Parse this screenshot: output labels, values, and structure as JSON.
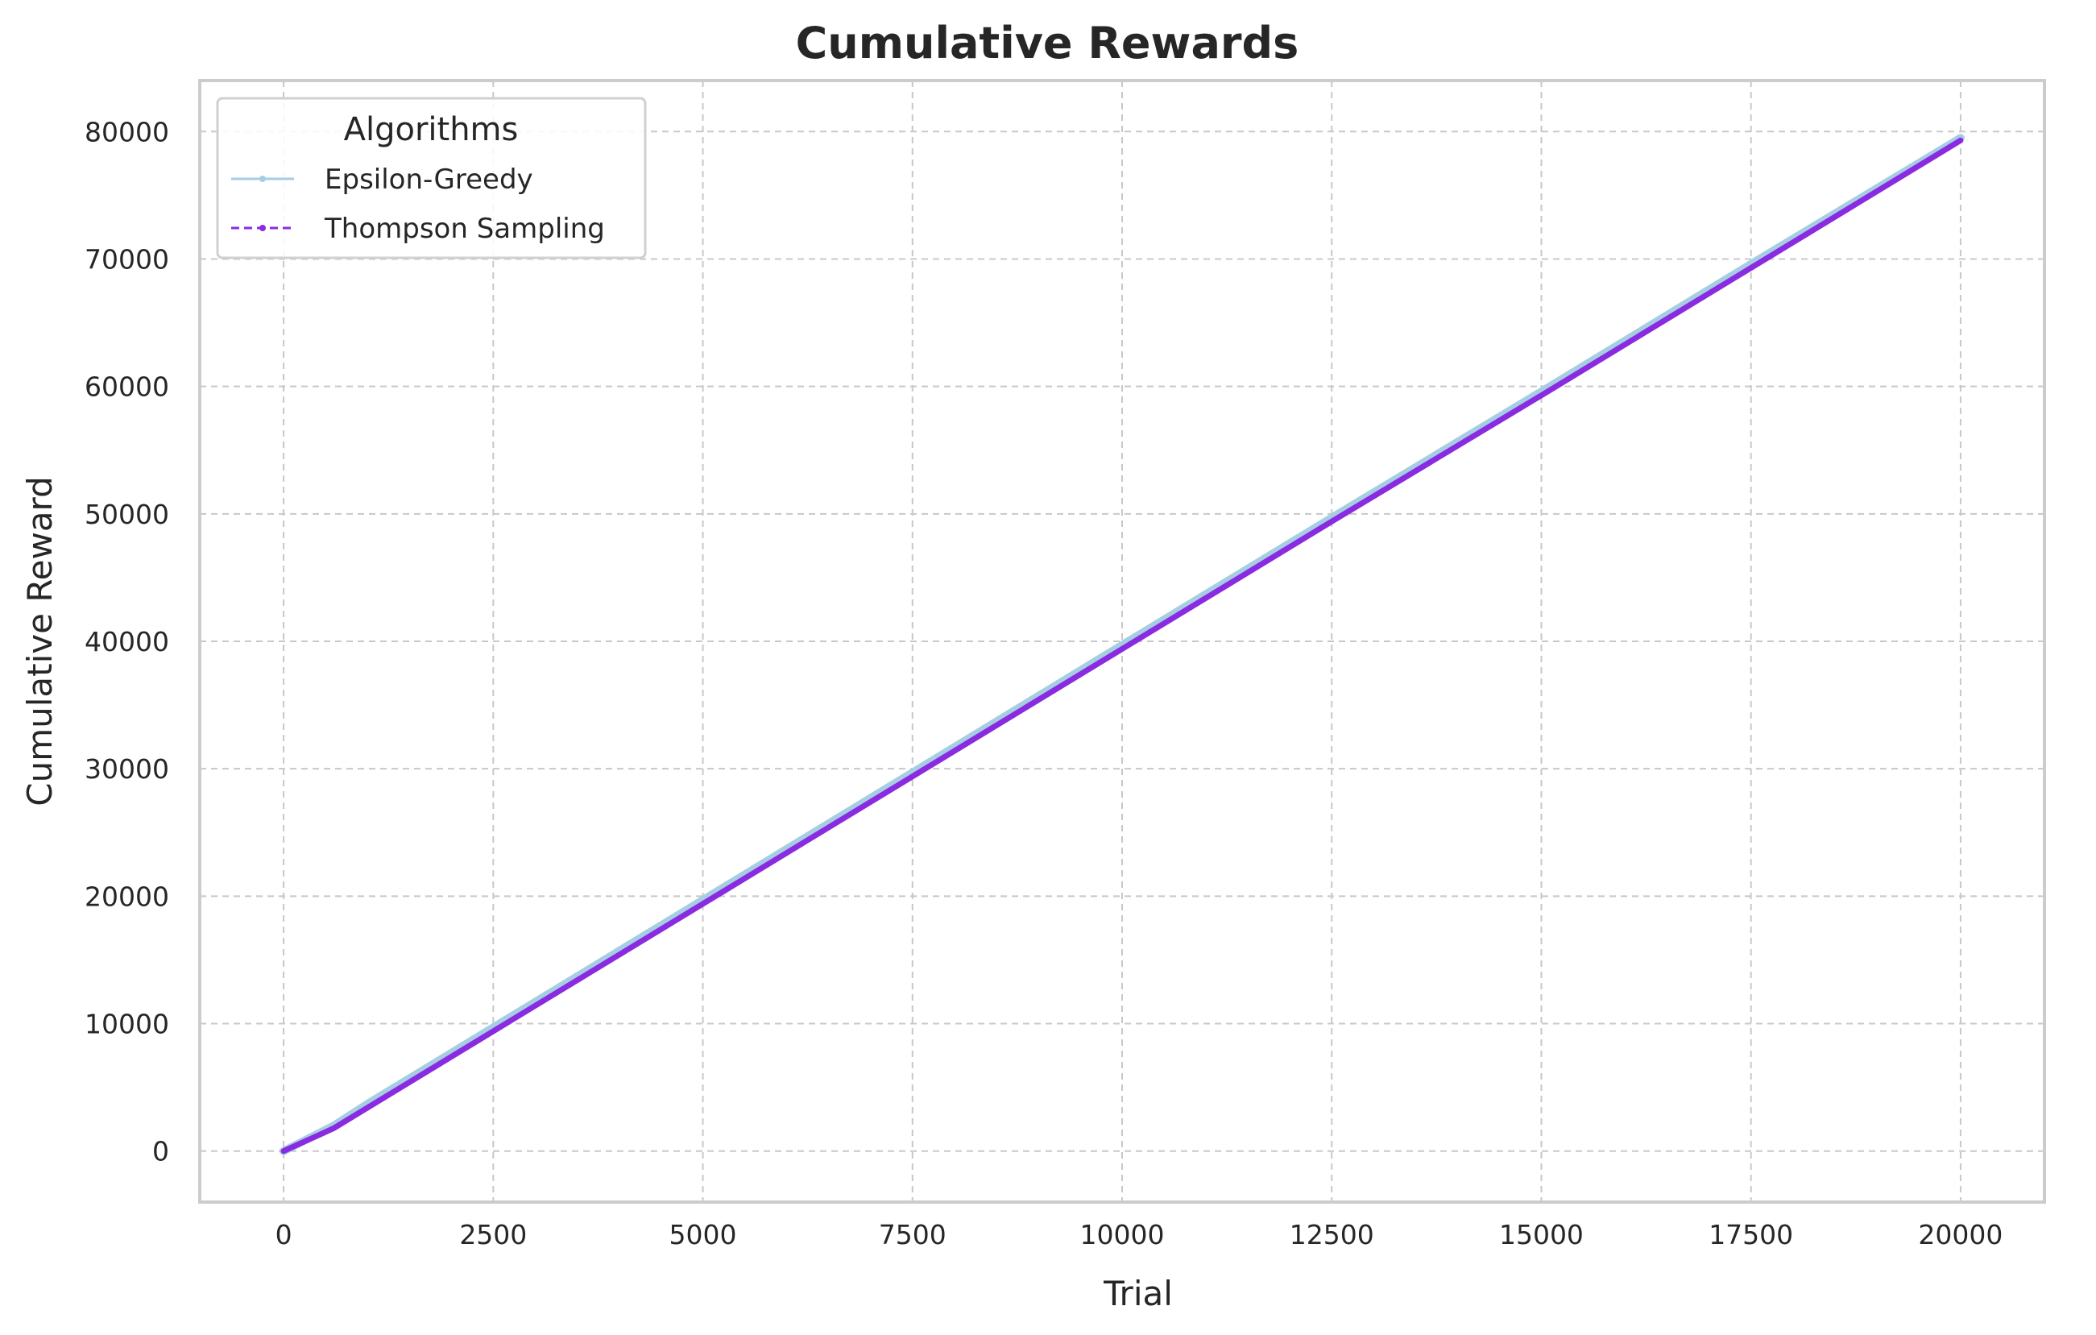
{
  "chart_data": {
    "type": "line",
    "title": "Cumulative Rewards",
    "xlabel": "Trial",
    "ylabel": "Cumulative Reward",
    "xlim": [
      -1000,
      21000
    ],
    "ylim": [
      -4000,
      84000
    ],
    "xticks": [
      0,
      2500,
      5000,
      7500,
      10000,
      12500,
      15000,
      17500,
      20000
    ],
    "xtick_labels": [
      "0",
      "2500",
      "5000",
      "7500",
      "10000",
      "12500",
      "15000",
      "17500",
      "20000"
    ],
    "yticks": [
      0,
      10000,
      20000,
      30000,
      40000,
      50000,
      60000,
      70000,
      80000
    ],
    "ytick_labels": [
      "0",
      "10000",
      "20000",
      "30000",
      "40000",
      "50000",
      "60000",
      "70000",
      "80000"
    ],
    "grid": true,
    "legend": {
      "title": "Algorithms",
      "placement": "top-left"
    },
    "series": [
      {
        "name": "Epsilon-Greedy",
        "color": "#a6cee3",
        "style": "solid",
        "x": [
          0,
          600,
          1000,
          2500,
          5000,
          7500,
          10000,
          12500,
          15000,
          17500,
          20000
        ],
        "y": [
          0,
          2000,
          3700,
          9700,
          19700,
          29700,
          39700,
          49700,
          59600,
          69600,
          79500
        ]
      },
      {
        "name": "Thompson Sampling",
        "color": "#8a2be2",
        "style": "dashed",
        "x": [
          0,
          600,
          1000,
          2500,
          5000,
          7500,
          10000,
          12500,
          15000,
          17500,
          20000
        ],
        "y": [
          0,
          1800,
          3400,
          9400,
          19400,
          29400,
          39400,
          49400,
          59300,
          69300,
          79300
        ]
      }
    ]
  }
}
